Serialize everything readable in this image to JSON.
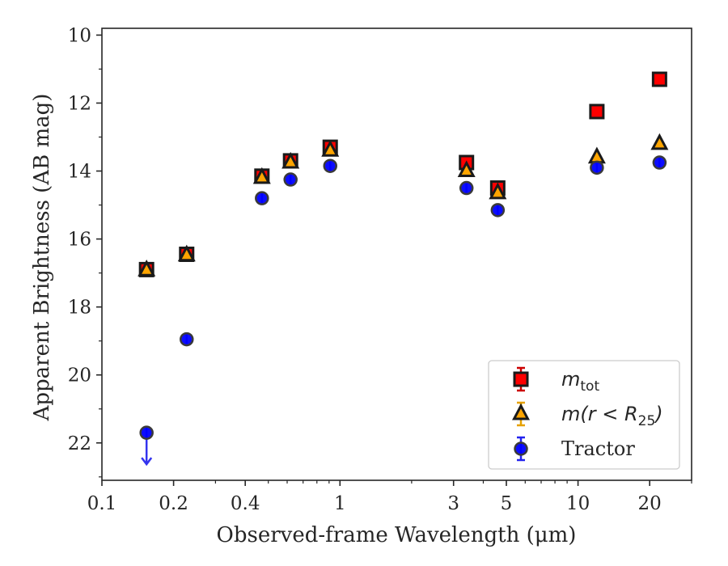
{
  "chart_data": {
    "type": "scatter",
    "title": "",
    "xlabel": "Observed-frame Wavelength (μm)",
    "ylabel": "Apparent Brightness (AB mag)",
    "x_scale": "log",
    "xlim": [
      0.1,
      30
    ],
    "ylim": [
      23.1,
      9.8
    ],
    "y_inverted": true,
    "x_ticks": [
      {
        "value": 0.1,
        "label": "0.1"
      },
      {
        "value": 0.2,
        "label": "0.2"
      },
      {
        "value": 0.4,
        "label": "0.4"
      },
      {
        "value": 1,
        "label": "1"
      },
      {
        "value": 3,
        "label": "3"
      },
      {
        "value": 5,
        "label": "5"
      },
      {
        "value": 10,
        "label": "10"
      },
      {
        "value": 20,
        "label": "20"
      }
    ],
    "y_ticks": [
      {
        "value": 10,
        "label": "10"
      },
      {
        "value": 12,
        "label": "12"
      },
      {
        "value": 14,
        "label": "14"
      },
      {
        "value": 16,
        "label": "16"
      },
      {
        "value": 18,
        "label": "18"
      },
      {
        "value": 20,
        "label": "20"
      },
      {
        "value": 22,
        "label": "22"
      }
    ],
    "grid": false,
    "legend_position": "bottom-right",
    "series": [
      {
        "key": "mtot",
        "name": "m_tot",
        "marker": "square",
        "color": "#ff0000",
        "error_color": "#cc0000",
        "x": [
          0.154,
          0.227,
          0.47,
          0.62,
          0.91,
          3.4,
          4.6,
          12,
          22
        ],
        "y": [
          16.9,
          16.45,
          14.15,
          13.7,
          13.3,
          13.75,
          14.5,
          12.25,
          11.3
        ]
      },
      {
        "key": "mr25",
        "name": "m(r < R25)",
        "marker": "triangle",
        "color": "#ffa500",
        "error_color": "#e6a100",
        "x": [
          0.154,
          0.227,
          0.47,
          0.62,
          0.91,
          3.4,
          4.6,
          12,
          22
        ],
        "y": [
          16.92,
          16.48,
          14.2,
          13.75,
          13.4,
          14.0,
          14.65,
          13.6,
          13.2
        ]
      },
      {
        "key": "tractor",
        "name": "Tractor",
        "marker": "circle",
        "color": "#0000ff",
        "error_color": "#2222ee",
        "x": [
          0.154,
          0.227,
          0.47,
          0.62,
          0.91,
          3.4,
          4.6,
          12,
          22
        ],
        "y": [
          21.7,
          18.95,
          14.8,
          14.25,
          13.85,
          14.5,
          15.15,
          13.9,
          13.75
        ],
        "upper_limits": [
          true,
          false,
          false,
          false,
          false,
          false,
          false,
          false,
          false
        ]
      }
    ],
    "legend": [
      {
        "series": "mtot",
        "base": "m",
        "sub": "tot",
        "label_rest": ""
      },
      {
        "series": "mr25",
        "base": "m(r < R",
        "sub": "25",
        "label_rest": ")"
      },
      {
        "series": "tractor",
        "base": "Tractor",
        "sub": "",
        "label_rest": ""
      }
    ]
  }
}
